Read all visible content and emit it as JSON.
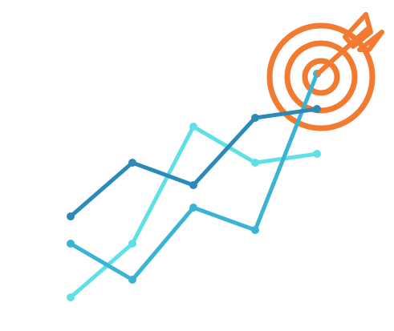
{
  "illustration": {
    "name": "growth-lines-with-target",
    "colors": {
      "target": "#F27A31",
      "line_dark": "#2B8AB8",
      "line_mid": "#3BB3D4",
      "line_light": "#5FE0E6"
    },
    "lines": [
      {
        "name": "dark-blue-line",
        "color_key": "line_dark",
        "points": [
          1,
          2,
          3,
          4,
          5
        ]
      },
      {
        "name": "mid-blue-line",
        "color_key": "line_mid",
        "points": [
          1,
          2,
          3,
          4,
          5
        ]
      },
      {
        "name": "light-cyan-line",
        "color_key": "line_light",
        "points": [
          1,
          2,
          3,
          4,
          5
        ]
      }
    ],
    "icons": [
      "target-icon",
      "arrow-icon"
    ]
  }
}
